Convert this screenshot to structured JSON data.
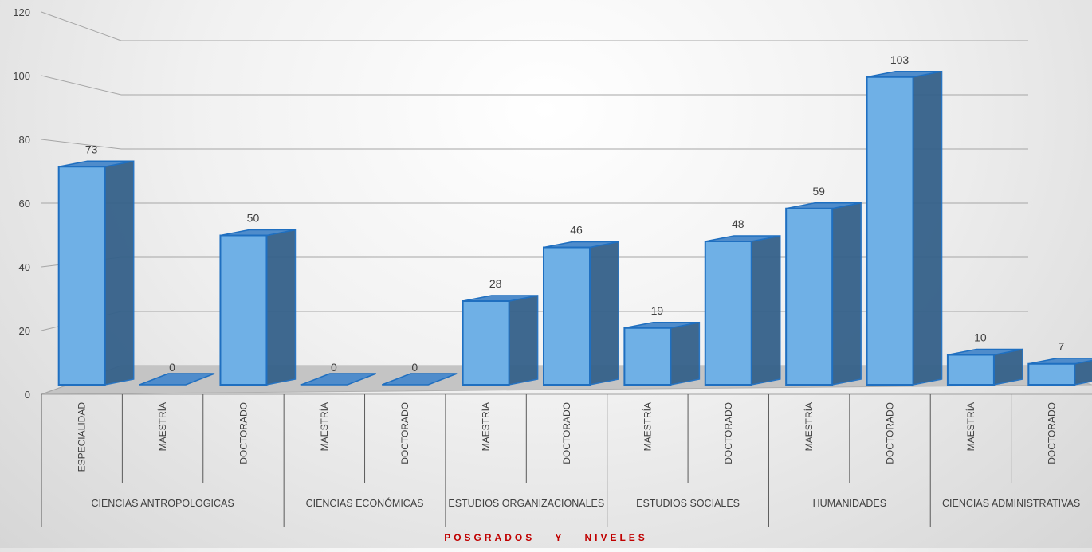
{
  "chart_data": {
    "type": "bar",
    "subtype": "3d-clustered-column",
    "title": "",
    "xlabel": "POSGRADOS Y NIVELES",
    "ylabel": "",
    "ylim": [
      0,
      120
    ],
    "yticks": [
      0,
      20,
      40,
      60,
      80,
      100,
      120
    ],
    "grid": true,
    "legend": "none",
    "colors": {
      "bar_front": "#6fb0e6",
      "bar_side": "#35618a",
      "bar_edge": "#1f6fc0",
      "axis_label": "#c00000"
    },
    "groups": [
      {
        "name": "CIENCIAS ANTROPOLOGICAS",
        "levels": [
          "ESPECIALIDAD",
          "MAESTRÍA",
          "DOCTORADO"
        ],
        "values": [
          73,
          0,
          50
        ]
      },
      {
        "name": "CIENCIAS ECONÓMICAS",
        "levels": [
          "MAESTRÍA",
          "DOCTORADO"
        ],
        "values": [
          0,
          0
        ]
      },
      {
        "name": "ESTUDIOS ORGANIZACIONALES",
        "levels": [
          "MAESTRÍA",
          "DOCTORADO"
        ],
        "values": [
          28,
          46
        ]
      },
      {
        "name": "ESTUDIOS SOCIALES",
        "levels": [
          "MAESTRÍA",
          "DOCTORADO"
        ],
        "values": [
          19,
          48
        ]
      },
      {
        "name": "HUMANIDADES",
        "levels": [
          "MAESTRÍA",
          "DOCTORADO"
        ],
        "values": [
          59,
          103
        ]
      },
      {
        "name": "CIENCIAS ADMINISTRATIVAS",
        "levels": [
          "MAESTRÍA",
          "DOCTORADO"
        ],
        "values": [
          10,
          7
        ]
      }
    ]
  }
}
